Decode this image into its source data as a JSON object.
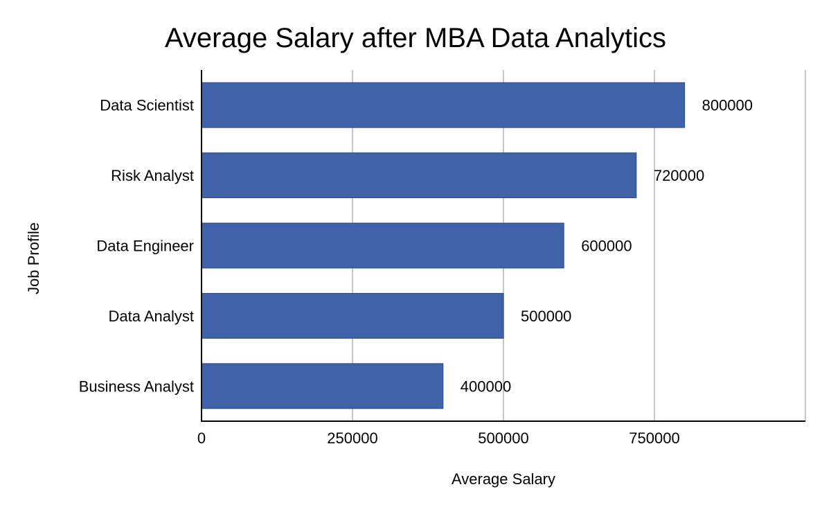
{
  "chart_data": {
    "type": "bar",
    "orientation": "horizontal",
    "title": "Average Salary after MBA Data Analytics",
    "xlabel": "Average Salary",
    "ylabel": "Job Profile",
    "categories": [
      "Data Scientist",
      "Risk Analyst",
      "Data Engineer",
      "Data Analyst",
      "Business Analyst"
    ],
    "values": [
      800000,
      720000,
      600000,
      500000,
      400000
    ],
    "data_labels": [
      "800000",
      "720000",
      "600000",
      "500000",
      "400000"
    ],
    "xlim": [
      0,
      1000000
    ],
    "x_ticks": [
      0,
      250000,
      500000,
      750000
    ],
    "x_tick_labels": [
      "0",
      "250000",
      "500000",
      "750000"
    ],
    "grid": true,
    "legend": "none",
    "bar_color": "#3f62a8",
    "bar_edge_color": "#2b4787",
    "grid_color": "#c6c6c6"
  }
}
